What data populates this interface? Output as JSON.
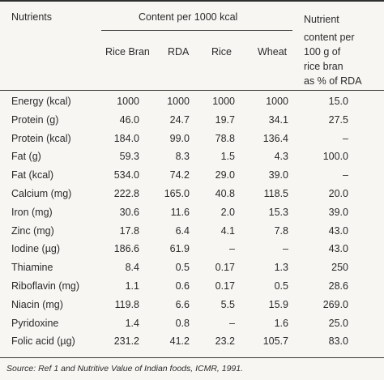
{
  "table": {
    "header": {
      "nutrients": "Nutrients",
      "group": "Content per 1000 kcal",
      "columns": [
        "Rice Bran",
        "RDA",
        "Rice",
        "Wheat"
      ],
      "last_col_lines": [
        "Nutrient",
        "content per",
        "100 g of",
        "rice bran",
        "as % of RDA"
      ]
    },
    "rows": [
      {
        "name": "Energy (kcal)",
        "rice_bran": "1000",
        "rda": "1000",
        "rice": "1000",
        "wheat": "1000",
        "pct": "15.0"
      },
      {
        "name": "Protein (g)",
        "rice_bran": "46.0",
        "rda": "24.7",
        "rice": "19.7",
        "wheat": "34.1",
        "pct": "27.5"
      },
      {
        "name": "Protein (kcal)",
        "rice_bran": "184.0",
        "rda": "99.0",
        "rice": "78.8",
        "wheat": "136.4",
        "pct": "–"
      },
      {
        "name": "Fat (g)",
        "rice_bran": "59.3",
        "rda": "8.3",
        "rice": "1.5",
        "wheat": "4.3",
        "pct": "100.0"
      },
      {
        "name": "Fat (kcal)",
        "rice_bran": "534.0",
        "rda": "74.2",
        "rice": "29.0",
        "wheat": "39.0",
        "pct": "–"
      },
      {
        "name": "Calcium (mg)",
        "rice_bran": "222.8",
        "rda": "165.0",
        "rice": "40.8",
        "wheat": "118.5",
        "pct": "20.0"
      },
      {
        "name": "Iron (mg)",
        "rice_bran": "30.6",
        "rda": "11.6",
        "rice": "2.0",
        "wheat": "15.3",
        "pct": "39.0"
      },
      {
        "name": "Zinc (mg)",
        "rice_bran": "17.8",
        "rda": "6.4",
        "rice": "4.1",
        "wheat": "7.8",
        "pct": "43.0"
      },
      {
        "name": "Iodine (µg)",
        "rice_bran": "186.6",
        "rda": "61.9",
        "rice": "–",
        "wheat": "–",
        "pct": "43.0"
      },
      {
        "name": "Thiamine",
        "rice_bran": "8.4",
        "rda": "0.5",
        "rice": "0.17",
        "wheat": "1.3",
        "pct": "250"
      },
      {
        "name": "Riboflavin (mg)",
        "rice_bran": "1.1",
        "rda": "0.6",
        "rice": "0.17",
        "wheat": "0.5",
        "pct": "28.6"
      },
      {
        "name": "Niacin (mg)",
        "rice_bran": "119.8",
        "rda": "6.6",
        "rice": "5.5",
        "wheat": "15.9",
        "pct": "269.0"
      },
      {
        "name": "Pyridoxine",
        "rice_bran": "1.4",
        "rda": "0.8",
        "rice": "–",
        "wheat": "1.6",
        "pct": "25.0"
      },
      {
        "name": "Folic acid (µg)",
        "rice_bran": "231.2",
        "rda": "41.2",
        "rice": "23.2",
        "wheat": "105.7",
        "pct": "83.0"
      }
    ]
  },
  "source": "Source: Ref 1 and Nutritive Value of Indian foods, ICMR, 1991."
}
